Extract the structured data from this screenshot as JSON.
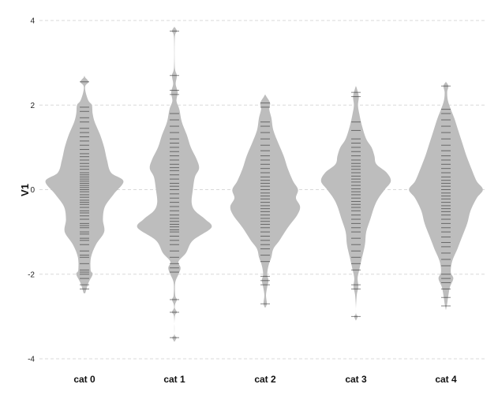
{
  "chart_data": {
    "type": "beanplot",
    "title": "",
    "xlabel": "",
    "ylabel": "V1",
    "ylim": [
      -4,
      4
    ],
    "yticks": [
      -4,
      -2,
      0,
      2,
      4
    ],
    "ytick_labels": [
      "-4",
      "-2",
      "0",
      "2",
      "4"
    ],
    "grid": true,
    "colors": {
      "violin": "#bdbdbd",
      "rug": "#222222",
      "grid": "#d9d9d9"
    },
    "categories": [
      "cat 0",
      "cat 1",
      "cat 2",
      "cat 3",
      "cat 4"
    ],
    "series": [
      {
        "category": "cat 0",
        "min": -2.45,
        "max": 2.7,
        "density": [
          [
            -2.45,
            0.02
          ],
          [
            -2.2,
            0.1
          ],
          [
            -2.0,
            0.2
          ],
          [
            -1.9,
            0.15
          ],
          [
            -1.6,
            0.16
          ],
          [
            -1.3,
            0.28
          ],
          [
            -1.0,
            0.48
          ],
          [
            -0.7,
            0.45
          ],
          [
            -0.4,
            0.5
          ],
          [
            -0.1,
            0.72
          ],
          [
            0.2,
            0.95
          ],
          [
            0.4,
            0.65
          ],
          [
            0.7,
            0.55
          ],
          [
            1.0,
            0.48
          ],
          [
            1.3,
            0.38
          ],
          [
            1.6,
            0.25
          ],
          [
            1.8,
            0.2
          ],
          [
            2.0,
            0.18
          ],
          [
            2.1,
            0.1
          ],
          [
            2.3,
            0.03
          ],
          [
            2.45,
            0.02
          ],
          [
            2.55,
            0.1
          ],
          [
            2.65,
            0.02
          ],
          [
            2.7,
            0.0
          ]
        ],
        "points": [
          -2.35,
          -2.25,
          -2.1,
          -2.0,
          -1.95,
          -1.9,
          -1.75,
          -1.6,
          -1.55,
          -1.45,
          -1.3,
          -1.2,
          -1.15,
          -1.05,
          -1.0,
          -0.9,
          -0.85,
          -0.8,
          -0.7,
          -0.62,
          -0.55,
          -0.5,
          -0.42,
          -0.35,
          -0.3,
          -0.25,
          -0.18,
          -0.12,
          -0.05,
          0.0,
          0.05,
          0.1,
          0.15,
          0.2,
          0.25,
          0.3,
          0.35,
          0.4,
          0.48,
          0.55,
          0.62,
          0.7,
          0.78,
          0.85,
          0.95,
          1.05,
          1.15,
          1.25,
          1.35,
          1.45,
          1.6,
          1.7,
          1.85,
          1.95,
          2.55
        ]
      },
      {
        "category": "cat 1",
        "min": -3.6,
        "max": 3.85,
        "density": [
          [
            -3.6,
            0.0
          ],
          [
            -3.5,
            0.05
          ],
          [
            -3.4,
            0.0
          ],
          [
            -3.0,
            0.01
          ],
          [
            -2.9,
            0.06
          ],
          [
            -2.8,
            0.01
          ],
          [
            -2.7,
            0.02
          ],
          [
            -2.6,
            0.06
          ],
          [
            -2.5,
            0.02
          ],
          [
            -2.2,
            0.02
          ],
          [
            -2.0,
            0.1
          ],
          [
            -1.85,
            0.15
          ],
          [
            -1.7,
            0.1
          ],
          [
            -1.5,
            0.28
          ],
          [
            -1.2,
            0.45
          ],
          [
            -0.9,
            0.9
          ],
          [
            -0.7,
            0.75
          ],
          [
            -0.5,
            0.5
          ],
          [
            -0.3,
            0.42
          ],
          [
            0.0,
            0.45
          ],
          [
            0.3,
            0.5
          ],
          [
            0.5,
            0.6
          ],
          [
            0.7,
            0.55
          ],
          [
            1.0,
            0.4
          ],
          [
            1.3,
            0.3
          ],
          [
            1.6,
            0.18
          ],
          [
            1.9,
            0.12
          ],
          [
            2.1,
            0.05
          ],
          [
            2.3,
            0.08
          ],
          [
            2.5,
            0.03
          ],
          [
            2.7,
            0.06
          ],
          [
            2.9,
            0.01
          ],
          [
            3.6,
            0.01
          ],
          [
            3.75,
            0.06
          ],
          [
            3.85,
            0.0
          ]
        ],
        "points": [
          -3.5,
          -2.9,
          -2.6,
          -1.95,
          -1.85,
          -1.75,
          -1.6,
          -1.45,
          -1.3,
          -1.2,
          -1.1,
          -1.0,
          -0.95,
          -0.88,
          -0.82,
          -0.75,
          -0.68,
          -0.6,
          -0.5,
          -0.4,
          -0.3,
          -0.2,
          -0.1,
          0.0,
          0.08,
          0.15,
          0.25,
          0.35,
          0.45,
          0.52,
          0.6,
          0.7,
          0.8,
          0.9,
          1.0,
          1.1,
          1.2,
          1.35,
          1.5,
          1.65,
          1.8,
          2.25,
          2.35,
          2.7,
          3.75
        ]
      },
      {
        "category": "cat 2",
        "min": -2.8,
        "max": 2.25,
        "density": [
          [
            -2.8,
            0.0
          ],
          [
            -2.7,
            0.04
          ],
          [
            -2.5,
            0.02
          ],
          [
            -2.3,
            0.05
          ],
          [
            -2.15,
            0.08
          ],
          [
            -2.0,
            0.05
          ],
          [
            -1.8,
            0.08
          ],
          [
            -1.6,
            0.15
          ],
          [
            -1.4,
            0.2
          ],
          [
            -1.2,
            0.35
          ],
          [
            -0.9,
            0.55
          ],
          [
            -0.6,
            0.78
          ],
          [
            -0.4,
            0.85
          ],
          [
            -0.2,
            0.75
          ],
          [
            0.0,
            0.8
          ],
          [
            0.2,
            0.68
          ],
          [
            0.5,
            0.55
          ],
          [
            0.8,
            0.45
          ],
          [
            1.1,
            0.32
          ],
          [
            1.4,
            0.2
          ],
          [
            1.7,
            0.15
          ],
          [
            1.9,
            0.1
          ],
          [
            2.05,
            0.12
          ],
          [
            2.2,
            0.03
          ],
          [
            2.25,
            0.0
          ]
        ],
        "points": [
          -2.7,
          -2.25,
          -2.15,
          -2.05,
          -1.7,
          -1.55,
          -1.4,
          -1.3,
          -1.2,
          -1.1,
          -1.0,
          -0.9,
          -0.82,
          -0.75,
          -0.68,
          -0.6,
          -0.52,
          -0.45,
          -0.38,
          -0.3,
          -0.22,
          -0.15,
          -0.08,
          0.0,
          0.08,
          0.15,
          0.22,
          0.3,
          0.4,
          0.5,
          0.6,
          0.7,
          0.8,
          0.92,
          1.05,
          1.2,
          1.35,
          1.5,
          1.6,
          1.95,
          2.05
        ]
      },
      {
        "category": "cat 3",
        "min": -3.1,
        "max": 2.45,
        "density": [
          [
            -3.1,
            0.0
          ],
          [
            -3.0,
            0.04
          ],
          [
            -2.9,
            0.0
          ],
          [
            -2.5,
            0.02
          ],
          [
            -2.3,
            0.06
          ],
          [
            -2.1,
            0.04
          ],
          [
            -1.9,
            0.08
          ],
          [
            -1.6,
            0.15
          ],
          [
            -1.3,
            0.22
          ],
          [
            -1.0,
            0.25
          ],
          [
            -0.7,
            0.35
          ],
          [
            -0.4,
            0.45
          ],
          [
            -0.2,
            0.55
          ],
          [
            0.0,
            0.7
          ],
          [
            0.2,
            0.85
          ],
          [
            0.4,
            0.75
          ],
          [
            0.6,
            0.5
          ],
          [
            0.8,
            0.45
          ],
          [
            1.0,
            0.38
          ],
          [
            1.2,
            0.25
          ],
          [
            1.5,
            0.15
          ],
          [
            1.8,
            0.08
          ],
          [
            2.0,
            0.05
          ],
          [
            2.2,
            0.07
          ],
          [
            2.4,
            0.02
          ],
          [
            2.45,
            0.0
          ]
        ],
        "points": [
          -3.0,
          -2.35,
          -2.25,
          -1.9,
          -1.75,
          -1.6,
          -1.45,
          -1.3,
          -1.15,
          -1.0,
          -0.9,
          -0.8,
          -0.7,
          -0.6,
          -0.5,
          -0.42,
          -0.35,
          -0.28,
          -0.2,
          -0.12,
          -0.05,
          0.02,
          0.1,
          0.18,
          0.25,
          0.32,
          0.4,
          0.48,
          0.55,
          0.62,
          0.7,
          0.8,
          0.9,
          1.0,
          1.1,
          1.2,
          1.4,
          1.6,
          2.2,
          2.3
        ]
      },
      {
        "category": "cat 4",
        "min": -2.85,
        "max": 2.55,
        "density": [
          [
            -2.85,
            0.0
          ],
          [
            -2.7,
            0.03
          ],
          [
            -2.5,
            0.06
          ],
          [
            -2.3,
            0.1
          ],
          [
            -2.1,
            0.18
          ],
          [
            -1.95,
            0.12
          ],
          [
            -1.7,
            0.15
          ],
          [
            -1.4,
            0.28
          ],
          [
            -1.1,
            0.4
          ],
          [
            -0.8,
            0.52
          ],
          [
            -0.5,
            0.6
          ],
          [
            -0.2,
            0.75
          ],
          [
            0.0,
            0.9
          ],
          [
            0.2,
            0.75
          ],
          [
            0.5,
            0.62
          ],
          [
            0.8,
            0.5
          ],
          [
            1.1,
            0.4
          ],
          [
            1.4,
            0.3
          ],
          [
            1.7,
            0.2
          ],
          [
            1.9,
            0.12
          ],
          [
            2.1,
            0.05
          ],
          [
            2.3,
            0.03
          ],
          [
            2.45,
            0.06
          ],
          [
            2.55,
            0.0
          ]
        ],
        "points": [
          -2.75,
          -2.55,
          -2.35,
          -2.2,
          -2.1,
          -2.0,
          -1.8,
          -1.65,
          -1.5,
          -1.35,
          -1.25,
          -1.12,
          -1.0,
          -0.9,
          -0.8,
          -0.7,
          -0.6,
          -0.52,
          -0.45,
          -0.38,
          -0.3,
          -0.22,
          -0.15,
          -0.08,
          0.0,
          0.08,
          0.15,
          0.22,
          0.3,
          0.4,
          0.5,
          0.6,
          0.7,
          0.8,
          0.92,
          1.05,
          1.2,
          1.35,
          1.5,
          1.65,
          1.8,
          1.9,
          2.45
        ]
      }
    ]
  }
}
